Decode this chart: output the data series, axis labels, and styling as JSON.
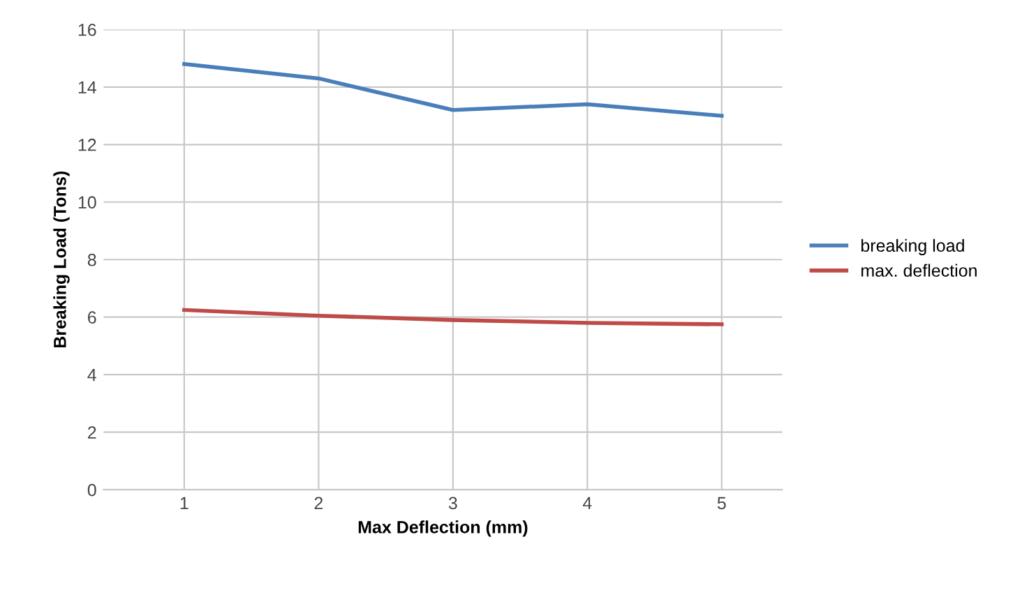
{
  "chart_data": {
    "type": "line",
    "xlabel": "Max Deflection (mm)",
    "ylabel": "Breaking Load (Tons)",
    "categories": [
      "1",
      "2",
      "3",
      "4",
      "5"
    ],
    "series": [
      {
        "name": "breaking load",
        "color": "#4a7ebb",
        "values": [
          14.8,
          14.3,
          13.2,
          13.4,
          13.0
        ]
      },
      {
        "name": "max. deflection",
        "color": "#be4b48",
        "values": [
          6.25,
          6.05,
          5.9,
          5.8,
          5.75
        ]
      }
    ],
    "ylim": [
      0,
      16
    ],
    "yticks": [
      0,
      2,
      4,
      6,
      8,
      10,
      12,
      14,
      16
    ],
    "grid": true,
    "legend": "right",
    "marker": "none",
    "line_style": "solid"
  }
}
